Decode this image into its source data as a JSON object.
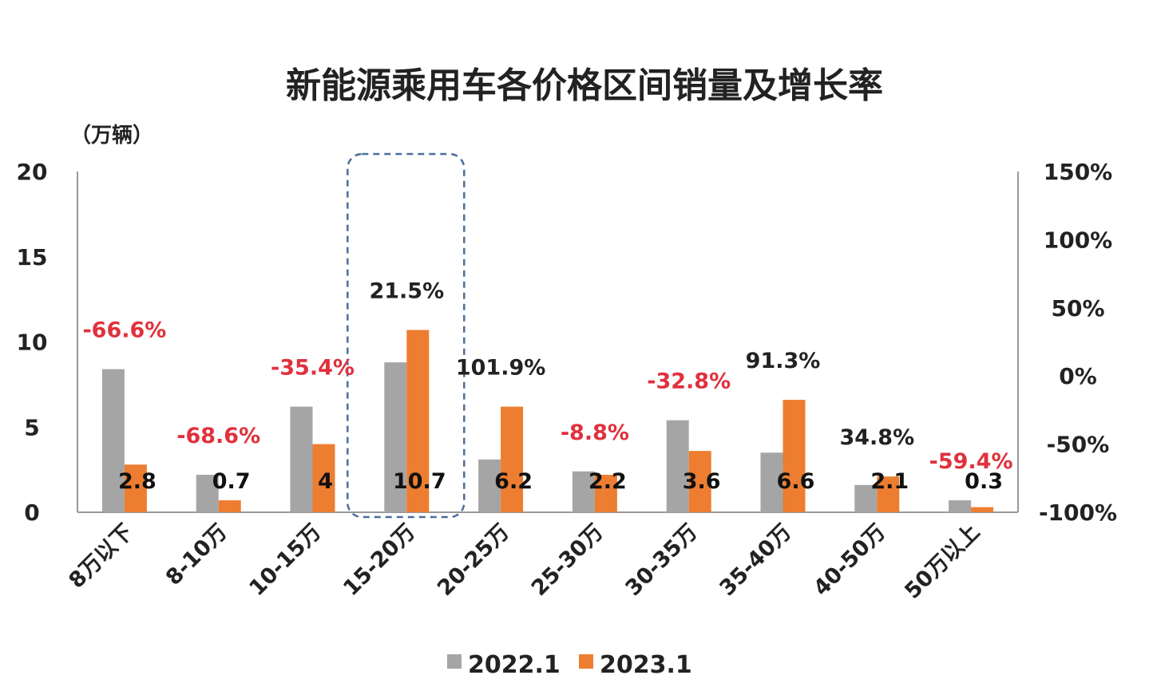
{
  "chart_data": {
    "type": "bar",
    "title": "新能源乘用车各价格区间销量及增长率",
    "ylabel": "（万辆）",
    "ylim": [
      0,
      20
    ],
    "yticks": [
      "0",
      "5",
      "10",
      "15",
      "20"
    ],
    "y2lim": [
      -100,
      150
    ],
    "y2ticks": [
      "-100%",
      "-50%",
      "0%",
      "50%",
      "100%",
      "150%"
    ],
    "categories": [
      "8万以下",
      "8-10万",
      "10-15万",
      "15-20万",
      "20-25万",
      "25-30万",
      "30-35万",
      "35-40万",
      "40-50万",
      "50万以上"
    ],
    "series": [
      {
        "name": "2022.1",
        "color": "#a5a5a5",
        "values": [
          8.4,
          2.2,
          6.2,
          8.8,
          3.1,
          2.4,
          5.4,
          3.5,
          1.6,
          0.7
        ]
      },
      {
        "name": "2023.1",
        "color": "#ed7d31",
        "values": [
          2.8,
          0.7,
          4,
          10.7,
          6.2,
          2.2,
          3.6,
          6.6,
          2.1,
          0.3
        ]
      }
    ],
    "value_labels": [
      "2.8",
      "0.7",
      "4",
      "10.7",
      "6.2",
      "2.2",
      "3.6",
      "6.6",
      "2.1",
      "0.3"
    ],
    "growth_labels": [
      "-66.6%",
      "-68.6%",
      "-35.4%",
      "21.5%",
      "101.9%",
      "-8.8%",
      "-32.8%",
      "91.3%",
      "34.8%",
      "-59.4%"
    ],
    "negative_color": "#e0313d",
    "positive_color": "#222222",
    "highlight_category": "15-20万",
    "legend_position": "bottom",
    "grid": false
  }
}
